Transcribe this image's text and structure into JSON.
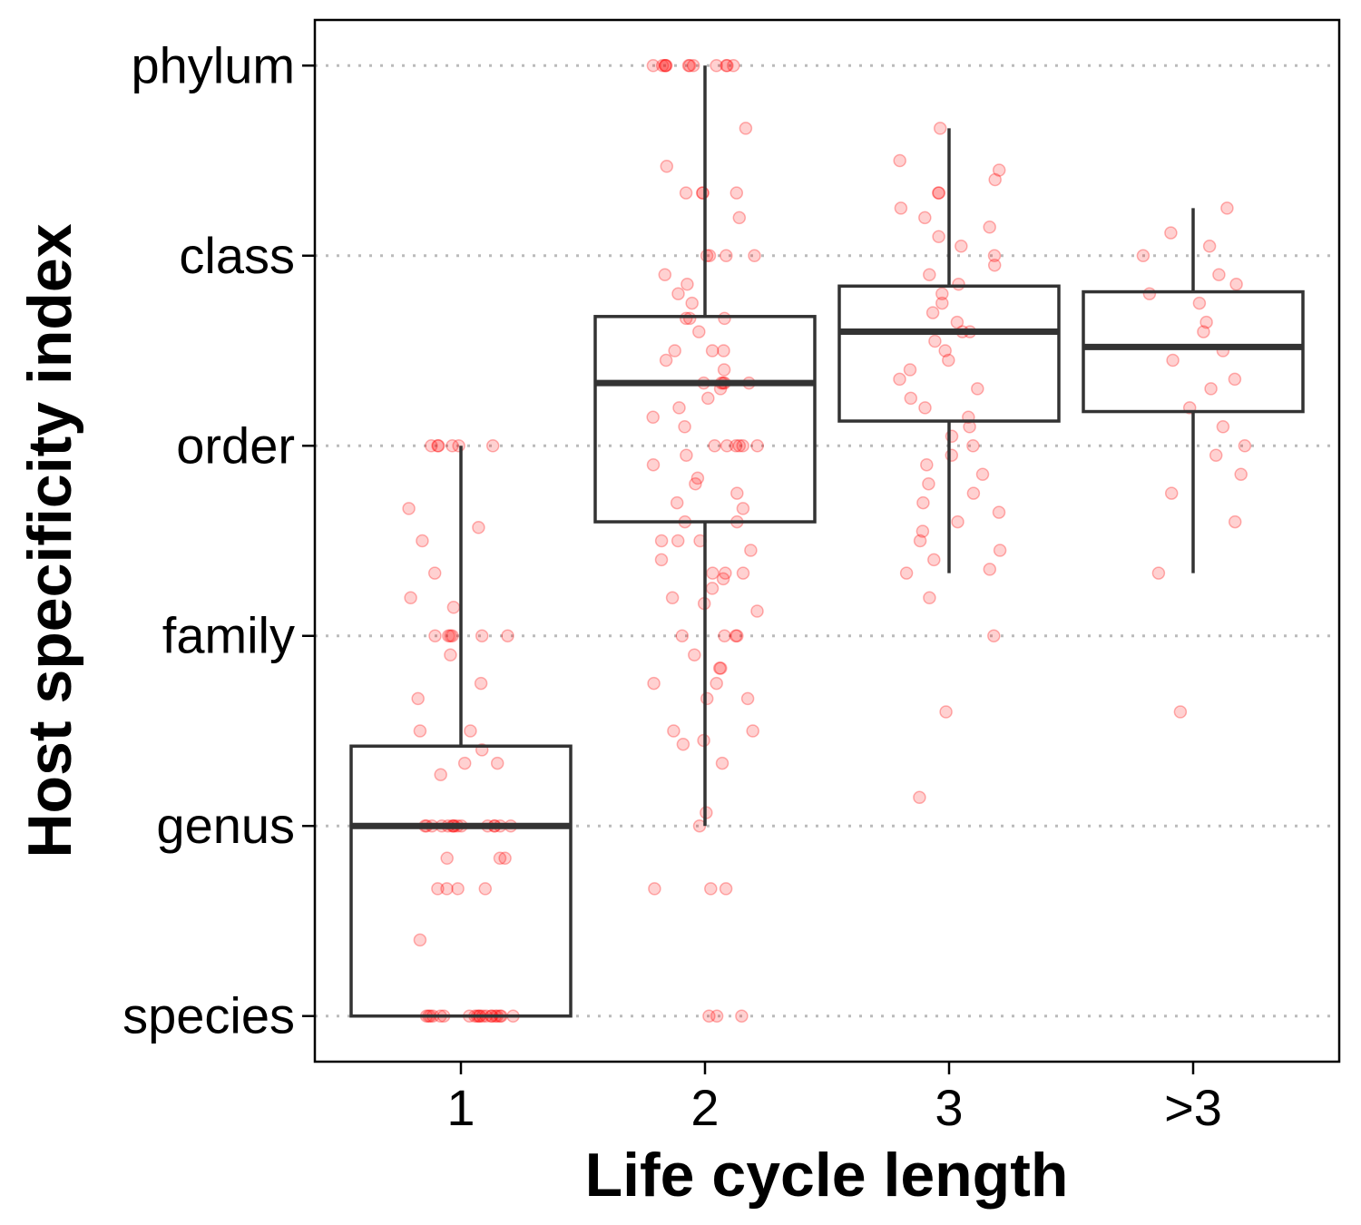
{
  "chart_data": {
    "type": "box",
    "xlabel": "Life cycle length",
    "ylabel": "Host specificity index",
    "categories": [
      "1",
      "2",
      "3",
      ">3"
    ],
    "y_levels": [
      "species",
      "genus",
      "family",
      "order",
      "class",
      "phylum"
    ],
    "ylim": [
      0.76,
      6.24
    ],
    "grid": "horizontal dotted at each level",
    "colors": {
      "points": "#ff0000",
      "box": "#333333",
      "grid": "#bbbbbb"
    },
    "boxes": [
      {
        "category": "1",
        "whisker_low": 1.0,
        "q1": 1.0,
        "median": 2.0,
        "q3": 2.42,
        "whisker_high": 4.0
      },
      {
        "category": "2",
        "whisker_low": 2.0,
        "q1": 3.6,
        "median": 4.33,
        "q3": 4.68,
        "whisker_high": 6.0
      },
      {
        "category": "3",
        "whisker_low": 3.33,
        "q1": 4.13,
        "median": 4.6,
        "q3": 4.84,
        "whisker_high": 5.67
      },
      {
        "category": ">3",
        "whisker_low": 3.33,
        "q1": 4.18,
        "median": 4.52,
        "q3": 4.81,
        "whisker_high": 5.25
      }
    ],
    "points": [
      {
        "category": "1",
        "y": [
          1,
          1,
          1,
          1,
          1,
          1,
          1,
          1,
          1,
          1,
          1,
          1,
          1,
          1,
          1,
          1,
          1,
          1,
          1,
          1,
          1.4,
          1.67,
          1.67,
          1.67,
          1.67,
          1.83,
          1.83,
          1.83,
          2,
          2,
          2,
          2,
          2,
          2,
          2,
          2,
          2,
          2,
          2,
          2,
          2,
          2,
          2,
          2.27,
          2.33,
          2.33,
          2.4,
          2.5,
          2.5,
          2.67,
          2.75,
          2.9,
          3.0,
          3.0,
          3.0,
          3.0,
          3.0,
          3.0,
          3.15,
          3.2,
          3.33,
          3.5,
          3.57,
          3.67,
          4.0,
          4.0,
          4.0,
          4.0,
          4.0,
          4.0
        ]
      },
      {
        "category": "2",
        "y": [
          1,
          1,
          1,
          1.67,
          1.67,
          1.67,
          2,
          2.07,
          2.33,
          2.43,
          2.45,
          2.5,
          2.5,
          2.67,
          2.67,
          2.75,
          2.75,
          2.83,
          2.83,
          2.9,
          3.0,
          3.0,
          3.0,
          3.0,
          3.13,
          3.17,
          3.2,
          3.25,
          3.3,
          3.33,
          3.33,
          3.33,
          3.4,
          3.45,
          3.5,
          3.5,
          3.5,
          3.6,
          3.6,
          3.67,
          3.7,
          3.75,
          3.8,
          3.83,
          3.9,
          3.95,
          4.0,
          4.0,
          4.0,
          4.0,
          4.0,
          4.0,
          4.1,
          4.15,
          4.2,
          4.25,
          4.3,
          4.33,
          4.33,
          4.33,
          4.33,
          4.33,
          4.4,
          4.45,
          4.5,
          4.5,
          4.5,
          4.6,
          4.67,
          4.67,
          4.67,
          4.75,
          4.8,
          4.85,
          4.9,
          5.0,
          5.0,
          5.0,
          5.0,
          5.2,
          5.33,
          5.33,
          5.33,
          5.33,
          5.47,
          5.67,
          6,
          6,
          6,
          6,
          6,
          6,
          6,
          6,
          6,
          6,
          6,
          6
        ]
      },
      {
        "category": "3",
        "y": [
          2.15,
          2.6,
          3.0,
          3.2,
          3.33,
          3.35,
          3.4,
          3.45,
          3.5,
          3.55,
          3.6,
          3.65,
          3.7,
          3.75,
          3.8,
          3.85,
          3.9,
          3.95,
          4.0,
          4.05,
          4.1,
          4.15,
          4.2,
          4.25,
          4.3,
          4.35,
          4.4,
          4.45,
          4.5,
          4.55,
          4.6,
          4.6,
          4.65,
          4.7,
          4.75,
          4.8,
          4.85,
          4.9,
          4.95,
          5.0,
          5.05,
          5.1,
          5.15,
          5.2,
          5.25,
          5.33,
          5.33,
          5.4,
          5.45,
          5.5,
          5.67
        ]
      },
      {
        "category": ">3",
        "y": [
          2.6,
          3.33,
          3.6,
          3.75,
          3.85,
          3.95,
          4.0,
          4.1,
          4.2,
          4.3,
          4.35,
          4.45,
          4.5,
          4.6,
          4.65,
          4.75,
          4.8,
          4.85,
          4.9,
          5.0,
          5.05,
          5.12,
          5.25
        ]
      }
    ]
  }
}
